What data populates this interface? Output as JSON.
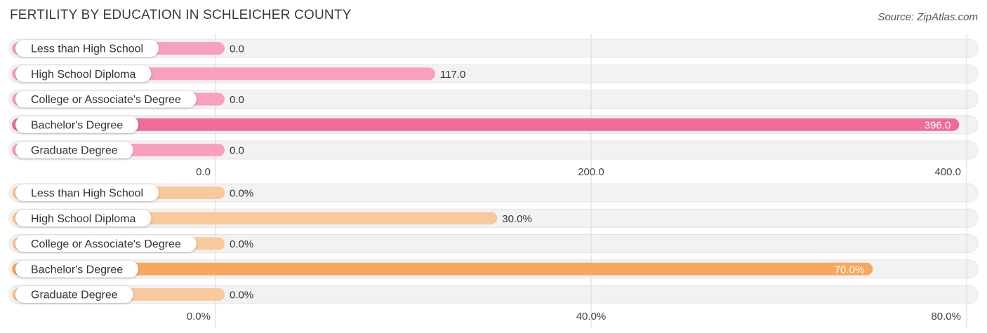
{
  "title": "FERTILITY BY EDUCATION IN SCHLEICHER COUNTY",
  "source": "Source: ZipAtlas.com",
  "chart_data": [
    {
      "type": "bar",
      "orientation": "horizontal",
      "categories": [
        "Less than High School",
        "High School Diploma",
        "College or Associate's Degree",
        "Bachelor's Degree",
        "Graduate Degree"
      ],
      "values": [
        0.0,
        117.0,
        0.0,
        396.0,
        0.0
      ],
      "value_labels": [
        "0.0",
        "117.0",
        "0.0",
        "396.0",
        "0.0"
      ],
      "xlim": [
        0,
        400
      ],
      "ticks": [
        0,
        200,
        400
      ],
      "tick_labels": [
        "0.0",
        "200.0",
        "400.0"
      ],
      "grid": true,
      "colors": {
        "bar": "#f7a1bf",
        "highlight": "#f06b95",
        "track": "#efefef"
      }
    },
    {
      "type": "bar",
      "orientation": "horizontal",
      "categories": [
        "Less than High School",
        "High School Diploma",
        "College or Associate's Degree",
        "Bachelor's Degree",
        "Graduate Degree"
      ],
      "values": [
        0.0,
        30.0,
        0.0,
        70.0,
        0.0
      ],
      "value_labels": [
        "0.0%",
        "30.0%",
        "0.0%",
        "70.0%",
        "0.0%"
      ],
      "xlim": [
        0,
        80
      ],
      "ticks": [
        0,
        40,
        80
      ],
      "tick_labels": [
        "0.0%",
        "40.0%",
        "80.0%"
      ],
      "grid": true,
      "colors": {
        "bar": "#f9c99e",
        "highlight": "#f7a85e",
        "track": "#efefef"
      }
    }
  ]
}
